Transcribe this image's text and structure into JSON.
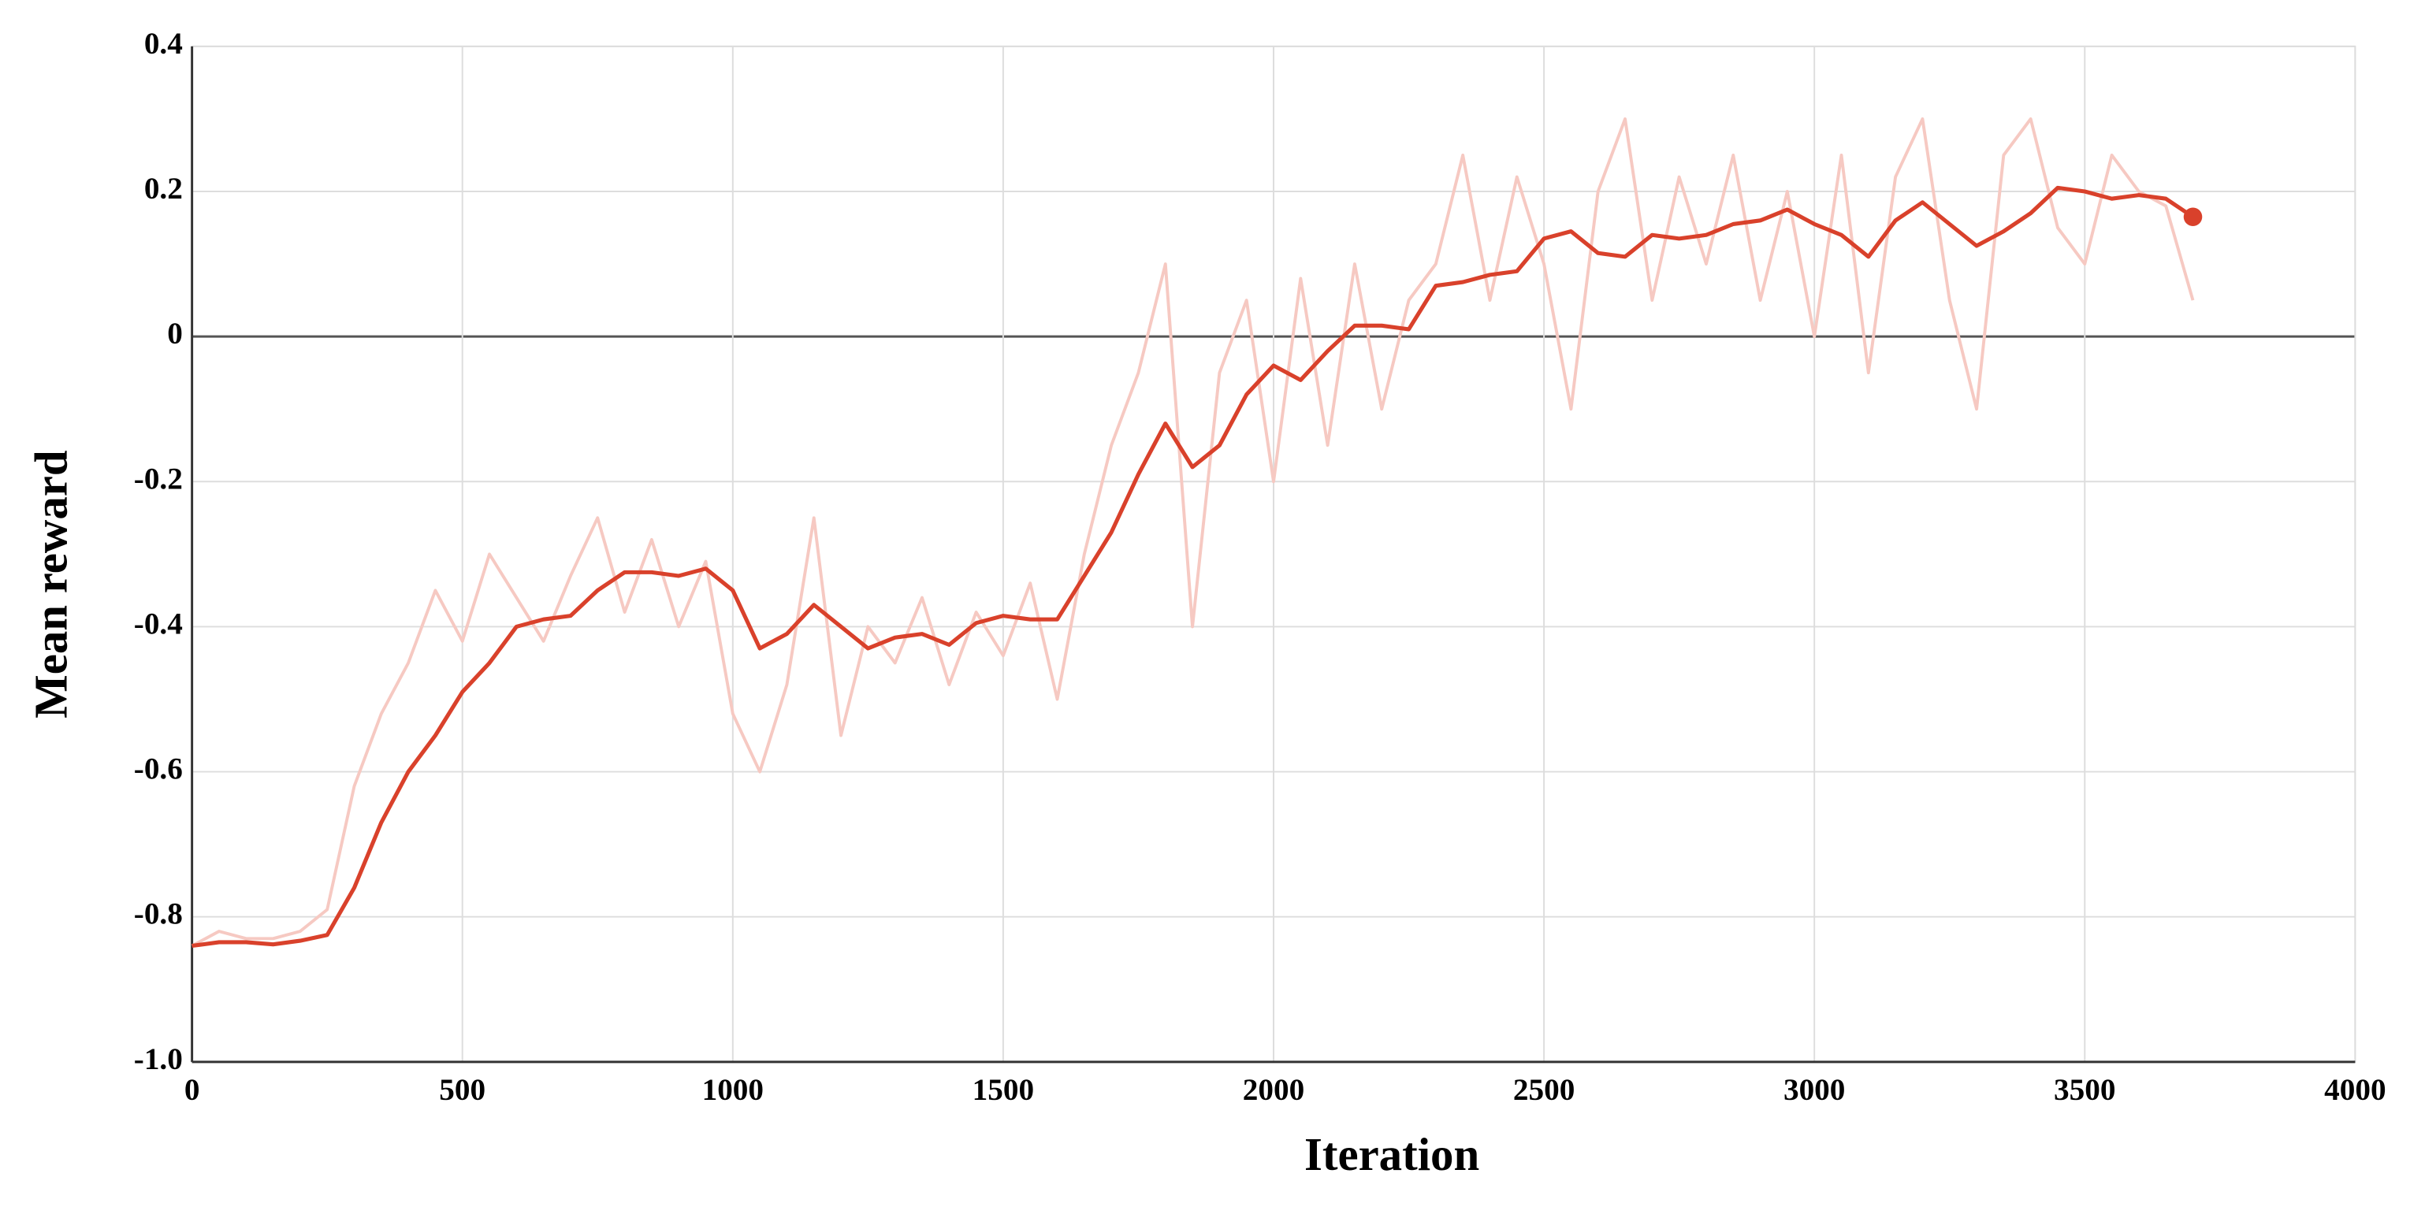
{
  "chart_data": {
    "type": "line",
    "x_label": "Iteration",
    "y_label": "Mean reward",
    "x": [
      0,
      50,
      100,
      150,
      200,
      250,
      300,
      350,
      400,
      450,
      500,
      550,
      600,
      650,
      700,
      750,
      800,
      850,
      900,
      950,
      1000,
      1050,
      1100,
      1150,
      1200,
      1250,
      1300,
      1350,
      1400,
      1450,
      1500,
      1550,
      1600,
      1650,
      1700,
      1750,
      1800,
      1850,
      1900,
      1950,
      2000,
      2050,
      2100,
      2150,
      2200,
      2250,
      2300,
      2350,
      2400,
      2450,
      2500,
      2550,
      2600,
      2650,
      2700,
      2750,
      2800,
      2850,
      2900,
      2950,
      3000,
      3050,
      3100,
      3150,
      3200,
      3250,
      3300,
      3350,
      3400,
      3450,
      3500,
      3550,
      3600,
      3650,
      3700
    ],
    "series": [
      {
        "color": "#f6c9c2",
        "values": [
          -0.84,
          -0.82,
          -0.83,
          -0.83,
          -0.82,
          -0.79,
          -0.62,
          -0.52,
          -0.45,
          -0.35,
          -0.42,
          -0.3,
          -0.36,
          -0.42,
          -0.33,
          -0.25,
          -0.38,
          -0.28,
          -0.4,
          -0.31,
          -0.52,
          -0.6,
          -0.48,
          -0.25,
          -0.55,
          -0.4,
          -0.45,
          -0.36,
          -0.48,
          -0.38,
          -0.44,
          -0.34,
          -0.5,
          -0.3,
          -0.15,
          -0.05,
          0.1,
          -0.4,
          -0.05,
          0.05,
          -0.2,
          0.08,
          -0.15,
          0.1,
          -0.1,
          0.05,
          0.1,
          0.25,
          0.05,
          0.22,
          0.1,
          -0.1,
          0.2,
          0.3,
          0.05,
          0.22,
          0.1,
          0.25,
          0.05,
          0.2,
          0.0,
          0.25,
          -0.05,
          0.22,
          0.3,
          0.05,
          -0.1,
          0.25,
          0.3,
          0.15,
          0.1,
          0.25,
          0.2,
          0.18,
          0.05
        ]
      },
      {
        "color": "#d9412b",
        "values": [
          -0.84,
          -0.835,
          -0.835,
          -0.838,
          -0.833,
          -0.825,
          -0.76,
          -0.67,
          -0.6,
          -0.55,
          -0.49,
          -0.45,
          -0.4,
          -0.39,
          -0.385,
          -0.35,
          -0.325,
          -0.325,
          -0.33,
          -0.32,
          -0.35,
          -0.43,
          -0.41,
          -0.37,
          -0.4,
          -0.43,
          -0.415,
          -0.41,
          -0.425,
          -0.395,
          -0.385,
          -0.39,
          -0.39,
          -0.33,
          -0.27,
          -0.19,
          -0.12,
          -0.18,
          -0.15,
          -0.08,
          -0.04,
          -0.06,
          -0.02,
          0.015,
          0.015,
          0.01,
          0.07,
          0.075,
          0.085,
          0.09,
          0.135,
          0.145,
          0.115,
          0.11,
          0.14,
          0.135,
          0.14,
          0.155,
          0.16,
          0.175,
          0.155,
          0.14,
          0.11,
          0.16,
          0.185,
          0.155,
          0.125,
          0.145,
          0.17,
          0.205,
          0.2,
          0.19,
          0.195,
          0.19,
          0.165
        ]
      }
    ],
    "xlim": [
      0,
      4000
    ],
    "ylim": [
      -1,
      0.4
    ],
    "xticks": [
      0,
      500,
      1000,
      1500,
      2000,
      2500,
      3000,
      3500,
      4000
    ],
    "yticks": [
      {
        "value": -1,
        "label": "-1.0"
      },
      -0.8,
      -0.6,
      -0.4,
      -0.2,
      0,
      0.2,
      0.4
    ],
    "grid": true,
    "zero_line": true,
    "end_marker": true
  }
}
